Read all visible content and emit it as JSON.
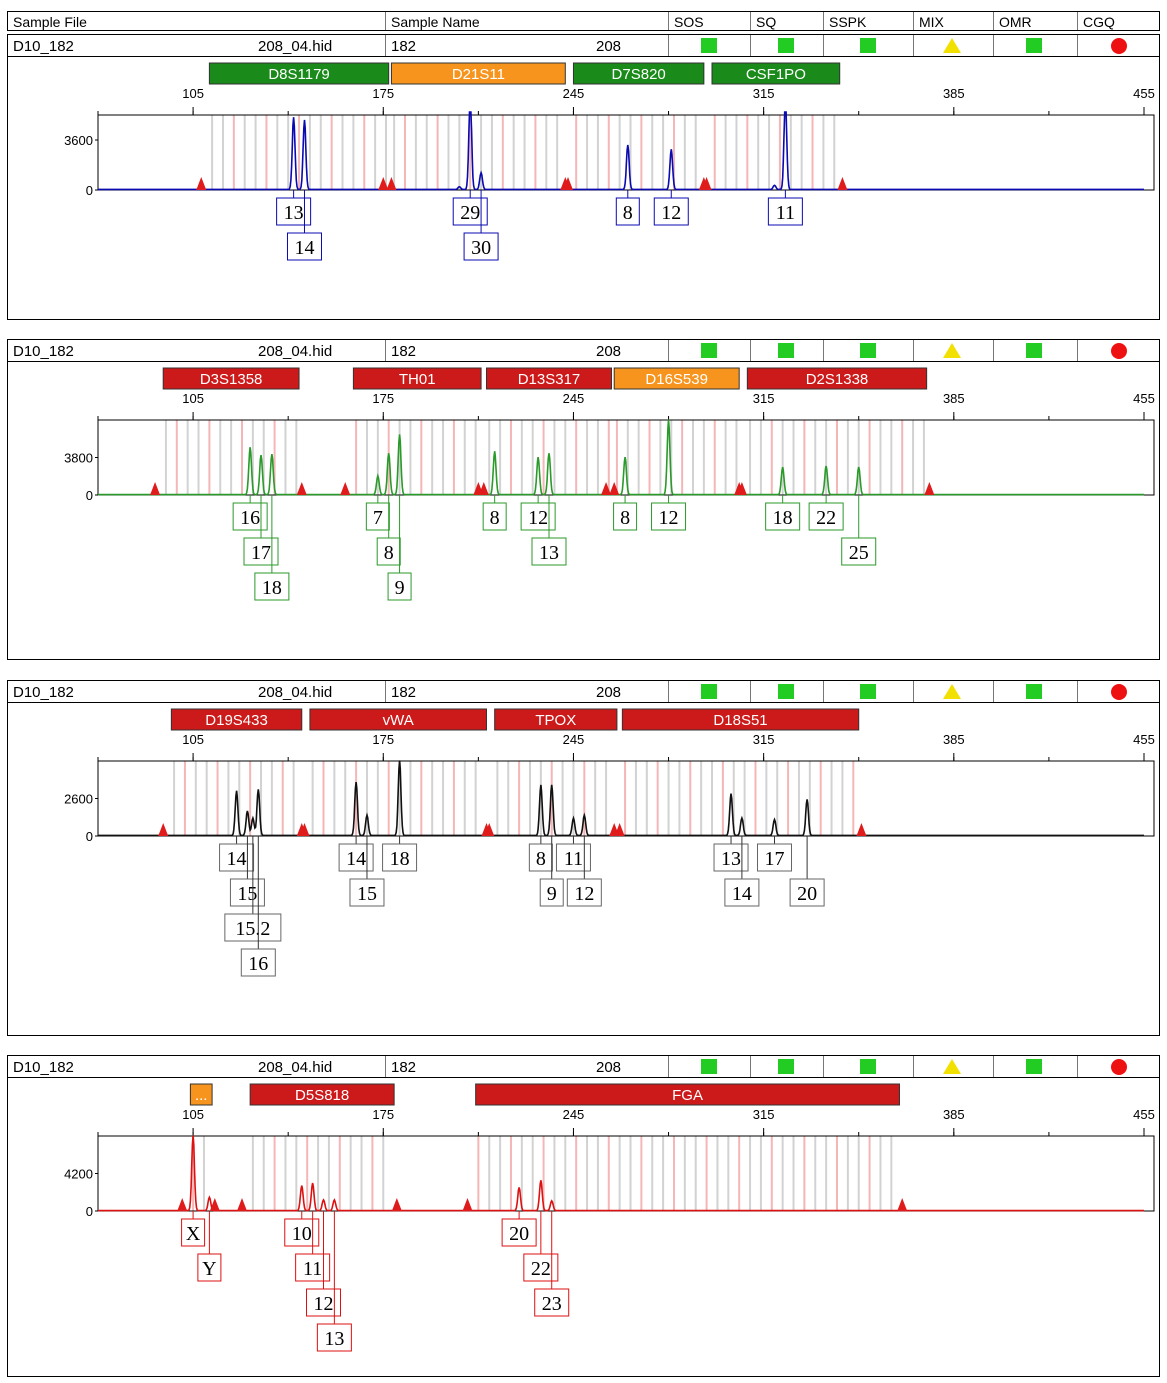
{
  "header": {
    "columns": [
      "Sample File",
      "Sample Name",
      "SOS",
      "SQ",
      "SSPK",
      "MIX",
      "OMR",
      "CGQ"
    ]
  },
  "sample": {
    "file_start": "D10_182",
    "file_end": "208_04.hid",
    "name_start": "182",
    "name_end": "208"
  },
  "status_colors": {
    "SOS": "#22cc22",
    "SQ": "#22cc22",
    "SSPK": "#22cc22",
    "MIX": "#f2e000",
    "OMR": "#22cc22",
    "CGQ": "#ee1111"
  },
  "status_shapes": {
    "SOS": "square",
    "SQ": "square",
    "SSPK": "square",
    "MIX": "triangle",
    "OMR": "square",
    "CGQ": "circle"
  },
  "chart_data": [
    {
      "type": "line",
      "dye": "blue",
      "color": "#0a0ab0",
      "xlim": [
        70,
        455
      ],
      "x_ticks": [
        105,
        175,
        245,
        315,
        385,
        455
      ],
      "y_ticks": [
        0,
        3600
      ],
      "ylim": [
        0,
        5400
      ],
      "markers": [
        {
          "name": "D8S1179",
          "start": 111,
          "end": 177,
          "color": "#1a8a1a"
        },
        {
          "name": "D21S11",
          "start": 178,
          "end": 242,
          "color": "#f7941d"
        },
        {
          "name": "D7S820",
          "start": 245,
          "end": 293,
          "color": "#1a8a1a"
        },
        {
          "name": "CSF1PO",
          "start": 296,
          "end": 343,
          "color": "#1a8a1a"
        }
      ],
      "peaks": [
        {
          "x": 142,
          "h": 5200,
          "label": "13"
        },
        {
          "x": 146,
          "h": 5000,
          "label": "14"
        },
        {
          "x": 207,
          "h": 7000,
          "label": "29"
        },
        {
          "x": 211,
          "h": 1200,
          "label": "30"
        },
        {
          "x": 265,
          "h": 3200,
          "label": "8"
        },
        {
          "x": 281,
          "h": 2900,
          "label": "12"
        },
        {
          "x": 323,
          "h": 6500,
          "label": "11"
        }
      ],
      "stutter": [
        {
          "x": 203,
          "h": 200
        },
        {
          "x": 319,
          "h": 300
        }
      ],
      "labels_row2": [
        "14",
        "30"
      ]
    },
    {
      "type": "line",
      "dye": "green",
      "color": "#2a9a2a",
      "xlim": [
        70,
        455
      ],
      "x_ticks": [
        105,
        175,
        245,
        315,
        385,
        455
      ],
      "y_ticks": [
        0,
        3800
      ],
      "ylim": [
        0,
        7600
      ],
      "markers": [
        {
          "name": "D3S1358",
          "start": 94,
          "end": 144,
          "color": "#cc1a1a"
        },
        {
          "name": "TH01",
          "start": 164,
          "end": 211,
          "color": "#cc1a1a"
        },
        {
          "name": "D13S317",
          "start": 213,
          "end": 259,
          "color": "#cc1a1a"
        },
        {
          "name": "D16S539",
          "start": 260,
          "end": 306,
          "color": "#f7941d"
        },
        {
          "name": "D2S1338",
          "start": 309,
          "end": 375,
          "color": "#cc1a1a"
        }
      ],
      "peaks": [
        {
          "x": 126,
          "h": 4800,
          "label": "16"
        },
        {
          "x": 130,
          "h": 4000,
          "label": "17"
        },
        {
          "x": 134,
          "h": 4100,
          "label": "18"
        },
        {
          "x": 173,
          "h": 1900,
          "label": "7"
        },
        {
          "x": 177,
          "h": 4200,
          "label": "8"
        },
        {
          "x": 181,
          "h": 6100,
          "label": "9"
        },
        {
          "x": 216,
          "h": 4400,
          "label": "8"
        },
        {
          "x": 232,
          "h": 3800,
          "label": "12"
        },
        {
          "x": 236,
          "h": 4200,
          "label": "13"
        },
        {
          "x": 264,
          "h": 3800,
          "label": "8"
        },
        {
          "x": 280,
          "h": 7600,
          "label": "12"
        },
        {
          "x": 322,
          "h": 2800,
          "label": "18"
        },
        {
          "x": 338,
          "h": 2900,
          "label": "22"
        },
        {
          "x": 350,
          "h": 2800,
          "label": "25"
        }
      ],
      "stutter": []
    },
    {
      "type": "line",
      "dye": "black",
      "color": "#111111",
      "xlim": [
        70,
        455
      ],
      "x_ticks": [
        105,
        175,
        245,
        315,
        385,
        455
      ],
      "y_ticks": [
        0,
        2600
      ],
      "ylim": [
        0,
        5200
      ],
      "markers": [
        {
          "name": "D19S433",
          "start": 97,
          "end": 145,
          "color": "#cc1a1a"
        },
        {
          "name": "vWA",
          "start": 148,
          "end": 213,
          "color": "#cc1a1a"
        },
        {
          "name": "TPOX",
          "start": 216,
          "end": 261,
          "color": "#cc1a1a"
        },
        {
          "name": "D18S51",
          "start": 263,
          "end": 350,
          "color": "#cc1a1a"
        }
      ],
      "peaks": [
        {
          "x": 121,
          "h": 3100,
          "label": "14"
        },
        {
          "x": 125,
          "h": 1700,
          "label": "15"
        },
        {
          "x": 127,
          "h": 1200,
          "label": "15.2"
        },
        {
          "x": 129,
          "h": 3200,
          "label": "16"
        },
        {
          "x": 165,
          "h": 3700,
          "label": "14"
        },
        {
          "x": 169,
          "h": 1400,
          "label": "15"
        },
        {
          "x": 181,
          "h": 5200,
          "label": "18"
        },
        {
          "x": 233,
          "h": 3500,
          "label": "8"
        },
        {
          "x": 237,
          "h": 3500,
          "label": "9"
        },
        {
          "x": 245,
          "h": 1200,
          "label": "11"
        },
        {
          "x": 249,
          "h": 1400,
          "label": "12"
        },
        {
          "x": 303,
          "h": 2900,
          "label": "13"
        },
        {
          "x": 307,
          "h": 1200,
          "label": "14"
        },
        {
          "x": 319,
          "h": 1100,
          "label": "17"
        },
        {
          "x": 331,
          "h": 2500,
          "label": "20"
        }
      ],
      "stutter": []
    },
    {
      "type": "line",
      "dye": "red",
      "color": "#dd1111",
      "xlim": [
        70,
        455
      ],
      "x_ticks": [
        105,
        175,
        245,
        315,
        385,
        455
      ],
      "y_ticks": [
        0,
        4200
      ],
      "ylim": [
        0,
        8400
      ],
      "markers": [
        {
          "name": "...",
          "start": 104,
          "end": 112,
          "color": "#f7941d"
        },
        {
          "name": "D5S818",
          "start": 126,
          "end": 179,
          "color": "#cc1a1a"
        },
        {
          "name": "FGA",
          "start": 209,
          "end": 365,
          "color": "#cc1a1a"
        }
      ],
      "peaks": [
        {
          "x": 105,
          "h": 8400,
          "label": "X"
        },
        {
          "x": 111,
          "h": 1500,
          "label": "Y"
        },
        {
          "x": 145,
          "h": 2800,
          "label": "10"
        },
        {
          "x": 149,
          "h": 3100,
          "label": "11"
        },
        {
          "x": 153,
          "h": 1200,
          "label": "12"
        },
        {
          "x": 157,
          "h": 1200,
          "label": "13"
        },
        {
          "x": 225,
          "h": 2600,
          "label": "20"
        },
        {
          "x": 233,
          "h": 3400,
          "label": "22"
        },
        {
          "x": 237,
          "h": 1100,
          "label": "23"
        }
      ],
      "stutter": []
    }
  ]
}
